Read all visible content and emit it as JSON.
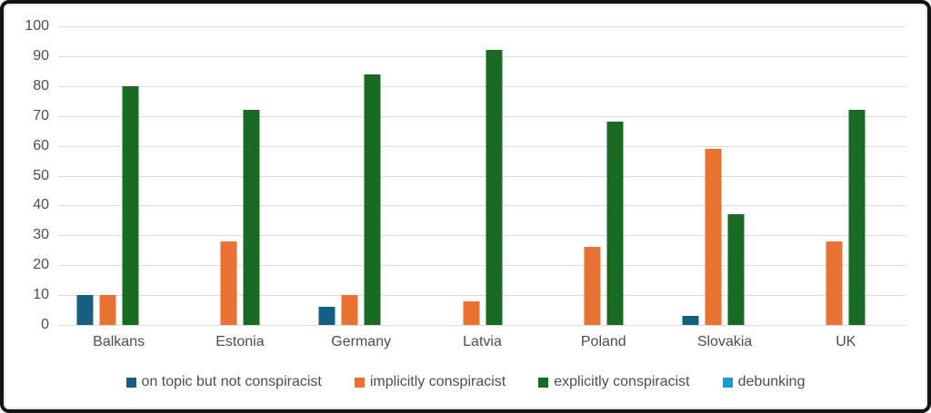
{
  "chart_data": {
    "type": "bar",
    "title": "",
    "xlabel": "",
    "ylabel": "",
    "categories": [
      "Balkans",
      "Estonia",
      "Germany",
      "Latvia",
      "Poland",
      "Slovakia",
      "UK"
    ],
    "series": [
      {
        "name": "on topic but not conspiracist",
        "color": "#156082",
        "values": [
          10,
          0,
          6,
          0,
          0,
          3,
          0
        ]
      },
      {
        "name": "implicitly conspiracist",
        "color": "#E97132",
        "values": [
          10,
          28,
          10,
          8,
          26,
          59,
          28
        ]
      },
      {
        "name": "explicitly conspiracist",
        "color": "#196B24",
        "values": [
          80,
          72,
          84,
          92,
          68,
          37,
          72
        ]
      },
      {
        "name": "debunking",
        "color": "#0F9ED5",
        "values": [
          0,
          0,
          0,
          0,
          0,
          0,
          0
        ]
      }
    ],
    "ylim": [
      0,
      100
    ],
    "yticks": [
      0,
      10,
      20,
      30,
      40,
      50,
      60,
      70,
      80,
      90,
      100
    ],
    "grid": true,
    "legend_position": "bottom"
  },
  "colors": {
    "gridline": "#dcdcdc",
    "axis_text": "#4d4d4d",
    "frame_border": "#141414",
    "background": "#ffffff"
  }
}
